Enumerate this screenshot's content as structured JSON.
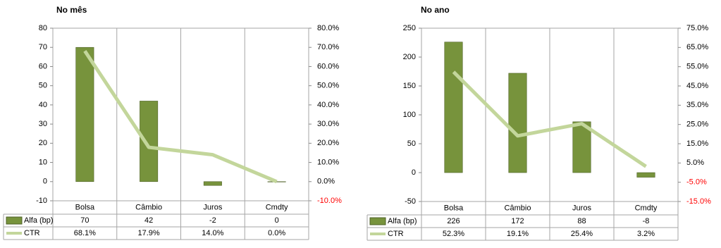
{
  "chart_data": [
    {
      "type": "bar",
      "title": "No mês",
      "categories": [
        "Bolsa",
        "Câmbio",
        "Juros",
        "Cmdty"
      ],
      "series": [
        {
          "name": "Alfa (bp)",
          "type": "bar",
          "color": "#77933c",
          "values": [
            70,
            42,
            -2,
            0
          ]
        },
        {
          "name": "CTR",
          "type": "line",
          "color": "#c3d69b",
          "axis": "y2",
          "values": [
            68.1,
            17.9,
            14.0,
            0.0
          ],
          "value_labels": [
            "68.1%",
            "17.9%",
            "14.0%",
            "0.0%"
          ]
        }
      ],
      "ylim": [
        -10,
        80
      ],
      "yticks": [
        -10,
        0,
        10,
        20,
        30,
        40,
        50,
        60,
        70,
        80
      ],
      "y2lim": [
        -10,
        80
      ],
      "y2ticks": [
        {
          "value": -10,
          "label": "-10.0%"
        },
        {
          "value": 0,
          "label": "0.0%"
        },
        {
          "value": 10,
          "label": "10.0%"
        },
        {
          "value": 20,
          "label": "20.0%"
        },
        {
          "value": 30,
          "label": "30.0%"
        },
        {
          "value": 40,
          "label": "40.0%"
        },
        {
          "value": 50,
          "label": "50.0%"
        },
        {
          "value": 60,
          "label": "60.0%"
        },
        {
          "value": 70,
          "label": "70.0%"
        },
        {
          "value": 80,
          "label": "80.0%"
        }
      ],
      "y2_negative_color": "#ff0000"
    },
    {
      "type": "bar",
      "title": "No ano",
      "categories": [
        "Bolsa",
        "Câmbio",
        "Juros",
        "Cmdty"
      ],
      "series": [
        {
          "name": "Alfa (bp)",
          "type": "bar",
          "color": "#77933c",
          "values": [
            226,
            172,
            88,
            -8
          ]
        },
        {
          "name": "CTR",
          "type": "line",
          "color": "#c3d69b",
          "axis": "y2",
          "values": [
            52.3,
            19.1,
            25.4,
            3.2
          ],
          "value_labels": [
            "52.3%",
            "19.1%",
            "25.4%",
            "3.2%"
          ]
        }
      ],
      "ylim": [
        -50,
        250
      ],
      "yticks": [
        -50,
        0,
        50,
        100,
        150,
        200,
        250
      ],
      "y2lim": [
        -15,
        75
      ],
      "y2ticks": [
        {
          "value": -15,
          "label": "-15.0%"
        },
        {
          "value": -5,
          "label": "-5.0%"
        },
        {
          "value": 5,
          "label": "5.0%"
        },
        {
          "value": 15,
          "label": "15.0%"
        },
        {
          "value": 25,
          "label": "25.0%"
        },
        {
          "value": 35,
          "label": "35.0%"
        },
        {
          "value": 45,
          "label": "45.0%"
        },
        {
          "value": 55,
          "label": "55.0%"
        },
        {
          "value": 65,
          "label": "65.0%"
        },
        {
          "value": 75,
          "label": "75.0%"
        }
      ],
      "y2_negative_color": "#ff0000"
    }
  ]
}
